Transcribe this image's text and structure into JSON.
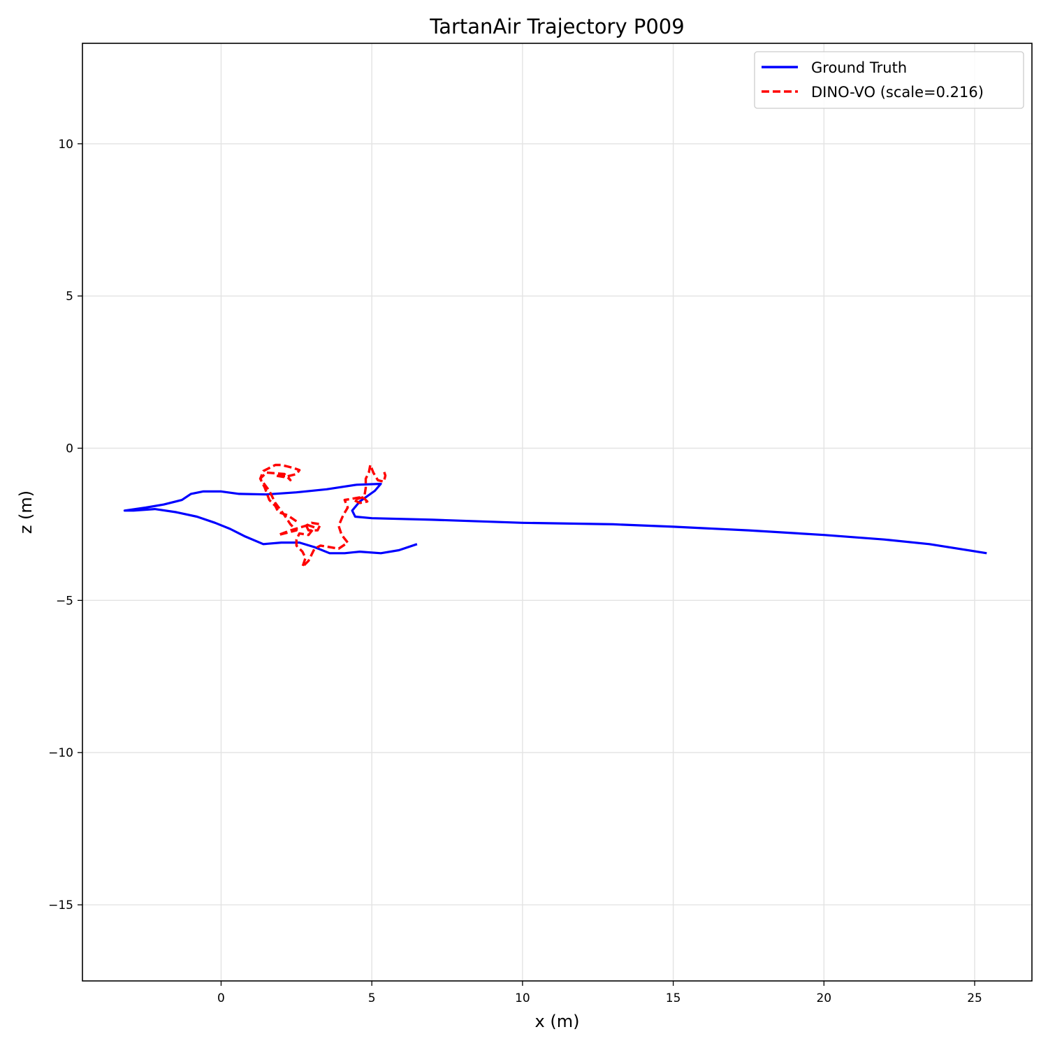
{
  "chart_data": {
    "type": "line",
    "title": "TartanAir Trajectory P009",
    "xlabel": "x (m)",
    "ylabel": "z (m)",
    "xlim": [
      -4.6,
      26.9
    ],
    "ylim": [
      -17.5,
      13.3
    ],
    "xticks": [
      0,
      5,
      10,
      15,
      20,
      25
    ],
    "yticks": [
      -15,
      -10,
      -5,
      0,
      5,
      10
    ],
    "xtick_labels": [
      "0",
      "5",
      "10",
      "15",
      "20",
      "25"
    ],
    "ytick_labels": [
      "−15",
      "−10",
      "−5",
      "0",
      "5",
      "10"
    ],
    "grid": true,
    "legend_position": "top-right",
    "series": [
      {
        "name": "Ground Truth",
        "color": "#0000ff",
        "style": "solid",
        "points": [
          [
            6.5,
            -3.15
          ],
          [
            5.9,
            -3.35
          ],
          [
            5.3,
            -3.45
          ],
          [
            4.6,
            -3.4
          ],
          [
            4.1,
            -3.45
          ],
          [
            3.6,
            -3.45
          ],
          [
            3.1,
            -3.25
          ],
          [
            2.6,
            -3.1
          ],
          [
            2.0,
            -3.1
          ],
          [
            1.4,
            -3.15
          ],
          [
            0.8,
            -2.9
          ],
          [
            0.3,
            -2.65
          ],
          [
            -0.2,
            -2.45
          ],
          [
            -0.8,
            -2.25
          ],
          [
            -1.5,
            -2.1
          ],
          [
            -2.2,
            -2.0
          ],
          [
            -2.9,
            -2.05
          ],
          [
            -3.2,
            -2.05
          ],
          [
            -2.5,
            -1.95
          ],
          [
            -1.9,
            -1.85
          ],
          [
            -1.3,
            -1.7
          ],
          [
            -1.0,
            -1.5
          ],
          [
            -0.6,
            -1.42
          ],
          [
            0.0,
            -1.42
          ],
          [
            0.6,
            -1.5
          ],
          [
            1.5,
            -1.52
          ],
          [
            2.5,
            -1.45
          ],
          [
            3.5,
            -1.35
          ],
          [
            4.5,
            -1.2
          ],
          [
            5.3,
            -1.17
          ],
          [
            5.1,
            -1.4
          ],
          [
            4.6,
            -1.75
          ],
          [
            4.35,
            -2.05
          ],
          [
            4.45,
            -2.25
          ],
          [
            5.0,
            -2.3
          ],
          [
            7.0,
            -2.35
          ],
          [
            10.0,
            -2.45
          ],
          [
            13.0,
            -2.5
          ],
          [
            15.0,
            -2.58
          ],
          [
            17.5,
            -2.7
          ],
          [
            20.0,
            -2.85
          ],
          [
            22.0,
            -3.0
          ],
          [
            23.5,
            -3.15
          ],
          [
            25.4,
            -3.45
          ]
        ]
      },
      {
        "name": "DINO-VO (scale=0.216)",
        "color": "#ff0000",
        "style": "dashed",
        "points": [
          [
            2.5,
            -2.4
          ],
          [
            2.2,
            -2.2
          ],
          [
            1.9,
            -2.1
          ],
          [
            1.8,
            -1.9
          ],
          [
            1.6,
            -1.7
          ],
          [
            1.45,
            -1.3
          ],
          [
            1.3,
            -1.0
          ],
          [
            1.4,
            -0.75
          ],
          [
            1.6,
            -0.65
          ],
          [
            1.8,
            -0.55
          ],
          [
            2.0,
            -0.55
          ],
          [
            2.2,
            -0.6
          ],
          [
            2.4,
            -0.65
          ],
          [
            2.6,
            -0.72
          ],
          [
            2.5,
            -0.85
          ],
          [
            2.1,
            -0.95
          ],
          [
            1.8,
            -0.9
          ],
          [
            2.2,
            -0.92
          ],
          [
            2.3,
            -1.05
          ],
          [
            2.1,
            -0.85
          ],
          [
            1.5,
            -0.8
          ],
          [
            1.3,
            -1.0
          ],
          [
            1.6,
            -1.4
          ],
          [
            1.8,
            -1.8
          ],
          [
            2.1,
            -2.2
          ],
          [
            2.3,
            -2.5
          ],
          [
            2.5,
            -2.7
          ],
          [
            2.3,
            -2.75
          ],
          [
            1.9,
            -2.85
          ],
          [
            2.3,
            -2.7
          ],
          [
            2.8,
            -2.55
          ],
          [
            3.0,
            -2.45
          ],
          [
            3.3,
            -2.5
          ],
          [
            3.2,
            -2.7
          ],
          [
            2.9,
            -2.7
          ],
          [
            2.8,
            -2.5
          ],
          [
            3.1,
            -2.6
          ],
          [
            2.9,
            -2.85
          ],
          [
            2.6,
            -2.8
          ],
          [
            2.5,
            -3.0
          ],
          [
            2.5,
            -3.2
          ],
          [
            2.7,
            -3.4
          ],
          [
            2.8,
            -3.6
          ],
          [
            2.7,
            -3.9
          ],
          [
            2.9,
            -3.7
          ],
          [
            3.0,
            -3.5
          ],
          [
            3.1,
            -3.3
          ],
          [
            3.3,
            -3.2
          ],
          [
            3.6,
            -3.25
          ],
          [
            3.9,
            -3.3
          ],
          [
            4.2,
            -3.1
          ],
          [
            4.0,
            -2.85
          ],
          [
            3.9,
            -2.55
          ],
          [
            4.05,
            -2.2
          ],
          [
            4.2,
            -1.95
          ],
          [
            4.1,
            -1.7
          ],
          [
            4.4,
            -1.65
          ],
          [
            4.7,
            -1.6
          ],
          [
            4.85,
            -1.75
          ],
          [
            4.6,
            -1.8
          ],
          [
            4.4,
            -1.7
          ],
          [
            4.75,
            -1.6
          ],
          [
            4.8,
            -1.3
          ],
          [
            4.8,
            -1.0
          ],
          [
            4.9,
            -0.8
          ],
          [
            4.95,
            -0.55
          ],
          [
            5.05,
            -0.8
          ],
          [
            5.2,
            -1.05
          ],
          [
            5.4,
            -1.1
          ],
          [
            5.45,
            -0.9
          ],
          [
            5.4,
            -0.75
          ]
        ]
      }
    ]
  }
}
